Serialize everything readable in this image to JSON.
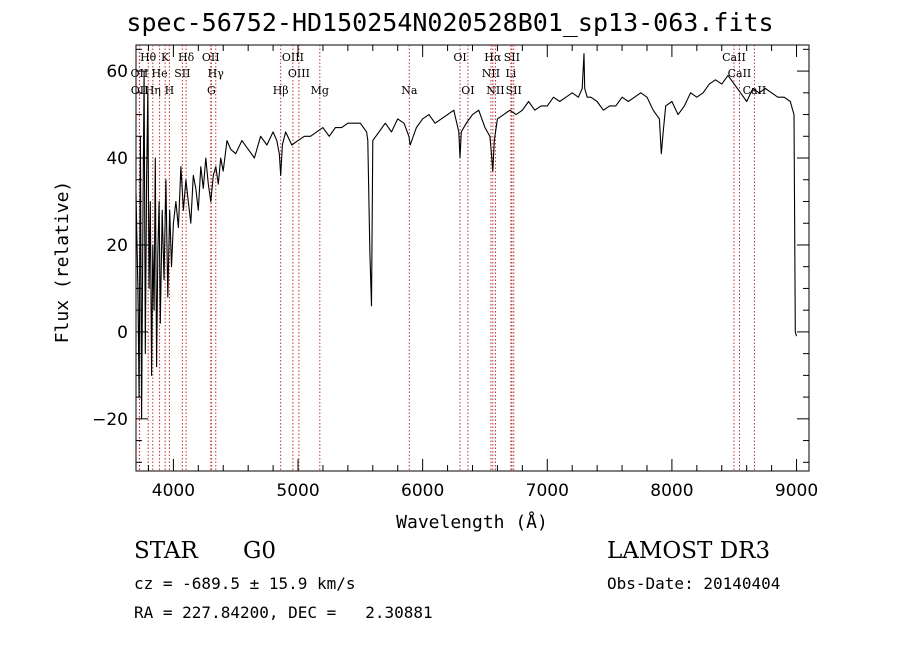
{
  "chart_data": {
    "type": "line",
    "title": "spec-56752-HD150254N020528B01_sp13-063.fits",
    "xlabel": "Wavelength (Å)",
    "ylabel": "Flux (relative)",
    "xlim": [
      3700,
      9100
    ],
    "ylim": [
      -32,
      66
    ],
    "xticks": [
      4000,
      5000,
      6000,
      7000,
      8000,
      9000
    ],
    "yticks": [
      -20,
      0,
      20,
      40,
      60
    ],
    "line_markers": [
      {
        "label": "Hθ",
        "x": 3798,
        "row": 0
      },
      {
        "label": "K",
        "x": 3934,
        "row": 0
      },
      {
        "label": "Hδ",
        "x": 4102,
        "row": 0
      },
      {
        "label": "OII",
        "x": 4300,
        "row": 0
      },
      {
        "label": "OIII",
        "x": 4959,
        "row": 0
      },
      {
        "label": "OI",
        "x": 6300,
        "row": 0
      },
      {
        "label": "Hα",
        "x": 6563,
        "row": 0
      },
      {
        "label": "SII",
        "x": 6716,
        "row": 0
      },
      {
        "label": "CaII",
        "x": 8498,
        "row": 0
      },
      {
        "label": "OII",
        "x": 3727,
        "row": 1
      },
      {
        "label": "He",
        "x": 3889,
        "row": 1
      },
      {
        "label": "SII",
        "x": 4072,
        "row": 1
      },
      {
        "label": "Hγ",
        "x": 4340,
        "row": 1
      },
      {
        "label": "OIII",
        "x": 5007,
        "row": 1
      },
      {
        "label": "NII",
        "x": 6548,
        "row": 1
      },
      {
        "label": "Li",
        "x": 6708,
        "row": 1
      },
      {
        "label": "CaII",
        "x": 8542,
        "row": 1
      },
      {
        "label": "OII",
        "x": 3729,
        "row": 2
      },
      {
        "label": "Hη",
        "x": 3835,
        "row": 2
      },
      {
        "label": "H",
        "x": 3968,
        "row": 2
      },
      {
        "label": "G",
        "x": 4305,
        "row": 2
      },
      {
        "label": "Hβ",
        "x": 4861,
        "row": 2
      },
      {
        "label": "Mg",
        "x": 5175,
        "row": 2
      },
      {
        "label": "Na",
        "x": 5893,
        "row": 2
      },
      {
        "label": "OI",
        "x": 6363,
        "row": 2
      },
      {
        "label": "NII",
        "x": 6584,
        "row": 2
      },
      {
        "label": "SII",
        "x": 6731,
        "row": 2
      },
      {
        "label": "CaII",
        "x": 8662,
        "row": 2
      }
    ],
    "series": [
      {
        "name": "flux",
        "x": [
          3700,
          3715,
          3725,
          3735,
          3745,
          3755,
          3765,
          3775,
          3785,
          3795,
          3805,
          3815,
          3825,
          3835,
          3845,
          3855,
          3865,
          3875,
          3885,
          3895,
          3910,
          3925,
          3940,
          3955,
          3970,
          3985,
          4000,
          4020,
          4040,
          4060,
          4080,
          4100,
          4120,
          4140,
          4160,
          4180,
          4200,
          4220,
          4240,
          4260,
          4280,
          4300,
          4320,
          4340,
          4360,
          4380,
          4400,
          4430,
          4460,
          4500,
          4550,
          4600,
          4650,
          4700,
          4750,
          4800,
          4830,
          4850,
          4861,
          4875,
          4900,
          4950,
          5000,
          5050,
          5100,
          5150,
          5200,
          5250,
          5300,
          5350,
          5400,
          5450,
          5500,
          5550,
          5560,
          5577,
          5590,
          5600,
          5650,
          5700,
          5750,
          5800,
          5850,
          5890,
          5900,
          5950,
          6000,
          6050,
          6100,
          6150,
          6200,
          6250,
          6290,
          6300,
          6310,
          6350,
          6400,
          6450,
          6500,
          6540,
          6555,
          6563,
          6575,
          6600,
          6650,
          6700,
          6750,
          6800,
          6850,
          6900,
          6950,
          7000,
          7050,
          7100,
          7150,
          7200,
          7250,
          7280,
          7295,
          7300,
          7320,
          7350,
          7400,
          7450,
          7500,
          7550,
          7600,
          7650,
          7700,
          7750,
          7800,
          7850,
          7900,
          7915,
          7930,
          7950,
          8000,
          8050,
          8100,
          8150,
          8200,
          8250,
          8300,
          8350,
          8400,
          8450,
          8500,
          8550,
          8600,
          8650,
          8700,
          8750,
          8800,
          8850,
          8900,
          8950,
          8980,
          8990,
          9000
        ],
        "values": [
          32,
          10,
          -15,
          45,
          -20,
          25,
          60,
          -5,
          35,
          55,
          10,
          30,
          -10,
          20,
          5,
          40,
          -8,
          18,
          30,
          2,
          28,
          12,
          35,
          8,
          28,
          15,
          25,
          30,
          24,
          38,
          28,
          35,
          30,
          25,
          36,
          33,
          28,
          38,
          33,
          40,
          34,
          30,
          36,
          38,
          34,
          40,
          37,
          44,
          42,
          41,
          44,
          42,
          40,
          45,
          43,
          46,
          44,
          41,
          36,
          43,
          46,
          43,
          44,
          45,
          45,
          46,
          47,
          45,
          47,
          47,
          48,
          48,
          48,
          46,
          44,
          18,
          6,
          44,
          46,
          48,
          46,
          49,
          48,
          45,
          43,
          47,
          49,
          50,
          48,
          49,
          50,
          51,
          46,
          40,
          46,
          48,
          50,
          51,
          47,
          45,
          40,
          37,
          44,
          49,
          50,
          51,
          50,
          51,
          53,
          51,
          52,
          52,
          54,
          53,
          54,
          55,
          54,
          56,
          64,
          56,
          54,
          54,
          53,
          51,
          52,
          52,
          54,
          53,
          54,
          55,
          54,
          51,
          49,
          41,
          46,
          52,
          53,
          50,
          52,
          55,
          54,
          55,
          57,
          58,
          57,
          59,
          57,
          55,
          53,
          56,
          55,
          56,
          55,
          54,
          54,
          53,
          50,
          0,
          -1
        ]
      }
    ]
  },
  "info": {
    "class_label": "STAR",
    "subclass": "G0",
    "survey": "LAMOST DR3",
    "cz": "cz = -689.5 ± 15.9 km/s",
    "obs_date": "Obs-Date: 20140404",
    "radec": "RA = 227.84200, DEC =   2.30881"
  }
}
